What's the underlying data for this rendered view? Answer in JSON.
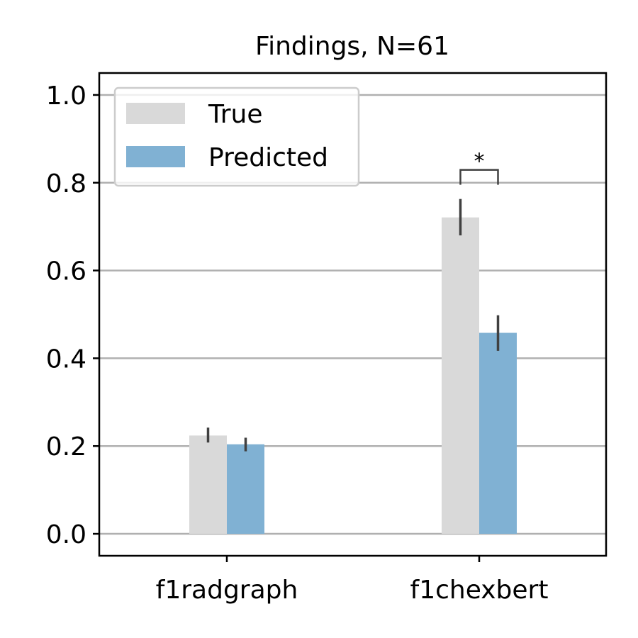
{
  "chart_data": {
    "type": "bar",
    "title": "Findings, N=61",
    "xlabel": "",
    "ylabel": "",
    "categories": [
      "f1radgraph",
      "f1chexbert"
    ],
    "series": [
      {
        "name": "True",
        "values": [
          0.224,
          0.721
        ],
        "errors": [
          [
            0.208,
            0.242
          ],
          [
            0.68,
            0.763
          ]
        ],
        "color": "#d9d9d9"
      },
      {
        "name": "Predicted",
        "values": [
          0.204,
          0.458
        ],
        "errors": [
          [
            0.188,
            0.219
          ],
          [
            0.417,
            0.498
          ]
        ],
        "color": "#80b1d3"
      }
    ],
    "ylim": [
      -0.05,
      1.05
    ],
    "yticks": [
      "0.0",
      "0.2",
      "0.4",
      "0.6",
      "0.8",
      "1.0"
    ],
    "grid": "horizontal",
    "legend_position": "top-left",
    "annotations": [
      {
        "category": "f1chexbert",
        "text": "*",
        "type": "significance-bracket"
      }
    ],
    "colors": {
      "errorbar": "#404040",
      "grid": "#b0b0b0",
      "axis": "#000000"
    }
  }
}
